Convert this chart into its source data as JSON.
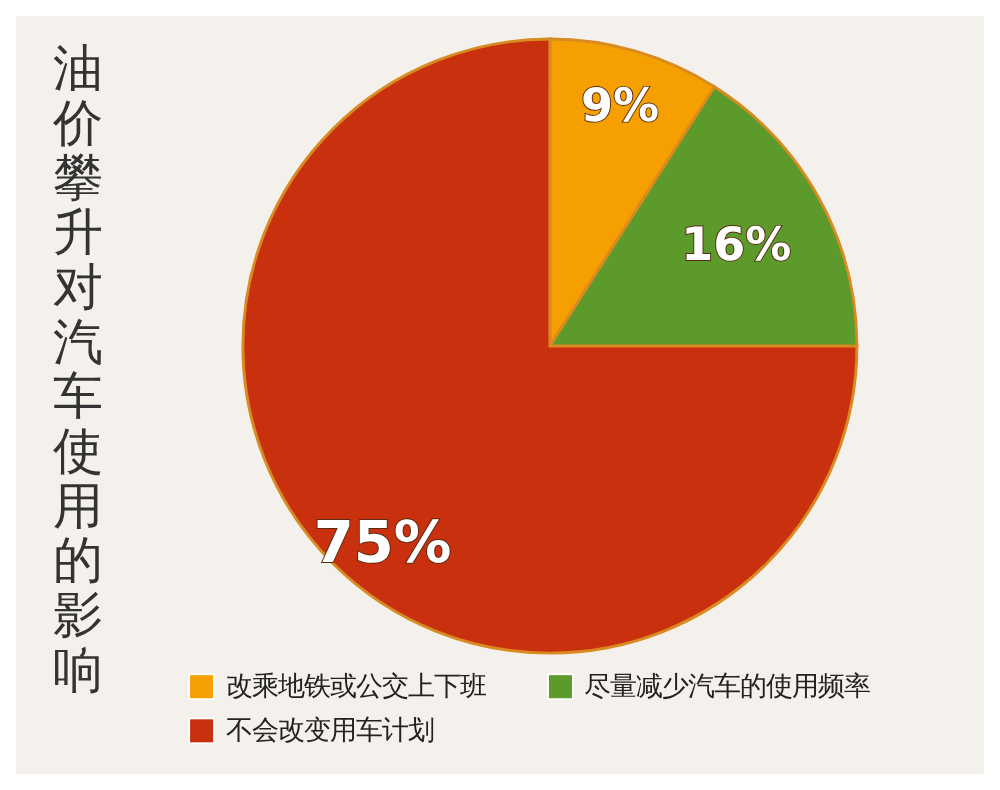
{
  "chart_data": {
    "type": "pie",
    "title": "油价攀升对汽车使用的影响",
    "categories": [
      "改乘地铁或公交上下班",
      "尽量减少汽车的使用频率",
      "不会改变用车计划"
    ],
    "values": [
      9,
      16,
      75
    ],
    "colors": [
      "#f5a000",
      "#5c9a2c",
      "#c8300e"
    ],
    "value_labels": [
      "9%",
      "16%",
      "75%"
    ],
    "legend": "bottom"
  }
}
